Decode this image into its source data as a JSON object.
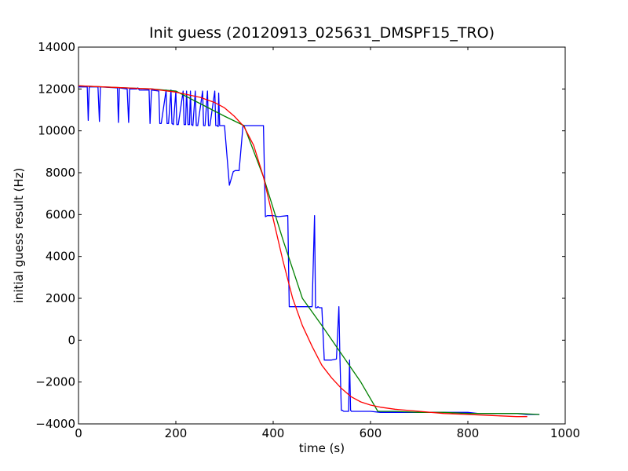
{
  "chart_data": {
    "type": "line",
    "title": "Init guess (20120913_025631_DMSPF15_TRO)",
    "xlabel": "time (s)",
    "ylabel": "initial guess result (Hz)",
    "xlim": [
      0,
      1000
    ],
    "ylim": [
      -4000,
      14000
    ],
    "xticks": [
      0,
      200,
      400,
      600,
      800,
      1000
    ],
    "yticks": [
      -4000,
      -2000,
      0,
      2000,
      4000,
      6000,
      8000,
      10000,
      12000,
      14000
    ],
    "grid": false,
    "legend": "none",
    "series": [
      {
        "color": "#0000ff",
        "x": [
          0,
          18,
          20,
          22,
          40,
          43,
          45,
          80,
          82,
          84,
          100,
          103,
          105,
          120,
          122,
          125,
          145,
          147,
          150,
          165,
          167,
          170,
          180,
          182,
          185,
          190,
          192,
          195,
          200,
          202,
          205,
          215,
          217,
          220,
          222,
          225,
          228,
          230,
          232,
          235,
          240,
          242,
          245,
          255,
          257,
          260,
          265,
          267,
          270,
          280,
          282,
          285,
          287,
          288,
          290,
          300,
          310,
          318,
          322,
          330,
          338,
          342,
          380,
          384,
          388,
          400,
          410,
          430,
          433,
          437,
          470,
          480,
          485,
          487,
          490,
          492,
          495,
          500,
          505,
          510,
          520,
          530,
          535,
          537,
          540,
          542,
          545,
          555,
          557,
          559,
          561,
          565,
          580,
          590,
          600,
          620,
          640,
          660,
          700,
          720,
          740,
          760,
          780,
          800,
          820,
          840,
          860,
          880,
          900,
          920,
          947
        ],
        "y": [
          12100,
          12100,
          10500,
          12100,
          12100,
          10450,
          12100,
          12050,
          10400,
          12050,
          12000,
          10400,
          12000,
          12000,
          12050,
          11950,
          11950,
          10350,
          11950,
          11900,
          10350,
          10350,
          11950,
          10350,
          10350,
          11950,
          10350,
          10300,
          11900,
          10300,
          10300,
          11900,
          10300,
          10300,
          11900,
          10300,
          10300,
          11900,
          10300,
          10250,
          11900,
          10250,
          10250,
          11900,
          10250,
          10250,
          11900,
          10250,
          10250,
          11900,
          10250,
          10250,
          10200,
          11800,
          10250,
          10250,
          7400,
          8050,
          8100,
          8100,
          10250,
          10250,
          10250,
          5900,
          5950,
          5950,
          5900,
          5950,
          1600,
          1600,
          1600,
          1600,
          5950,
          1550,
          1550,
          1600,
          1550,
          1550,
          -950,
          -950,
          -950,
          -900,
          1600,
          -700,
          -3350,
          -3350,
          -3400,
          -3400,
          -950,
          -3350,
          -3400,
          -3400,
          -3400,
          -3400,
          -3400,
          -3450,
          -3450,
          -3450,
          -3450,
          -3450,
          -3450,
          -3450,
          -3450,
          -3450,
          -3500,
          -3500,
          -3500,
          -3500,
          -3500,
          -3550,
          -3550
        ]
      },
      {
        "color": "#008000",
        "x": [
          0,
          50,
          100,
          150,
          200,
          250,
          300,
          340,
          380,
          420,
          460,
          500,
          540,
          580,
          615,
          650,
          700,
          750,
          800,
          850,
          900,
          947
        ],
        "y": [
          12150,
          12100,
          12050,
          12000,
          11900,
          11300,
          10700,
          10250,
          7800,
          4800,
          2000,
          700,
          -650,
          -2000,
          -3400,
          -3400,
          -3450,
          -3450,
          -3500,
          -3500,
          -3500,
          -3550
        ]
      },
      {
        "color": "#ff0000",
        "x": [
          0,
          50,
          100,
          150,
          200,
          250,
          280,
          300,
          320,
          340,
          360,
          380,
          400,
          420,
          440,
          460,
          480,
          500,
          520,
          540,
          560,
          580,
          600,
          620,
          650,
          700,
          750,
          800,
          850,
          900,
          922
        ],
        "y": [
          12150,
          12100,
          12050,
          12000,
          11850,
          11600,
          11350,
          11100,
          10700,
          10200,
          9300,
          7800,
          5800,
          3800,
          2000,
          700,
          -300,
          -1200,
          -1800,
          -2300,
          -2700,
          -2950,
          -3100,
          -3200,
          -3300,
          -3400,
          -3500,
          -3550,
          -3600,
          -3650,
          -3650
        ]
      }
    ]
  }
}
